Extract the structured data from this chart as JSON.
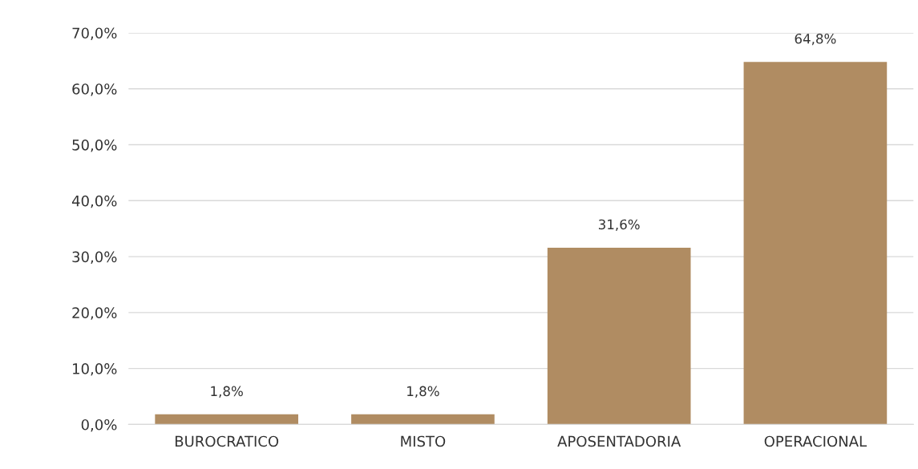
{
  "chart_data": {
    "type": "bar",
    "categories": [
      "BUROCRATICO",
      "MISTO",
      "APOSENTADORIA",
      "OPERACIONAL"
    ],
    "values": [
      1.8,
      1.8,
      31.6,
      64.8
    ],
    "value_labels": [
      "1,8%",
      "1,8%",
      "31,6%",
      "64,8%"
    ],
    "color": "#b08c62",
    "ylim": [
      0,
      70
    ],
    "yticks": [
      {
        "value": 0,
        "label": "0,0%"
      },
      {
        "value": 10,
        "label": "10,0%"
      },
      {
        "value": 20,
        "label": "20,0%"
      },
      {
        "value": 30,
        "label": "30,0%"
      },
      {
        "value": 40,
        "label": "40,0%"
      },
      {
        "value": 50,
        "label": "50,0%"
      },
      {
        "value": 60,
        "label": "60,0%"
      },
      {
        "value": 70,
        "label": "70,0%"
      }
    ],
    "grid": "y",
    "legend": false
  }
}
